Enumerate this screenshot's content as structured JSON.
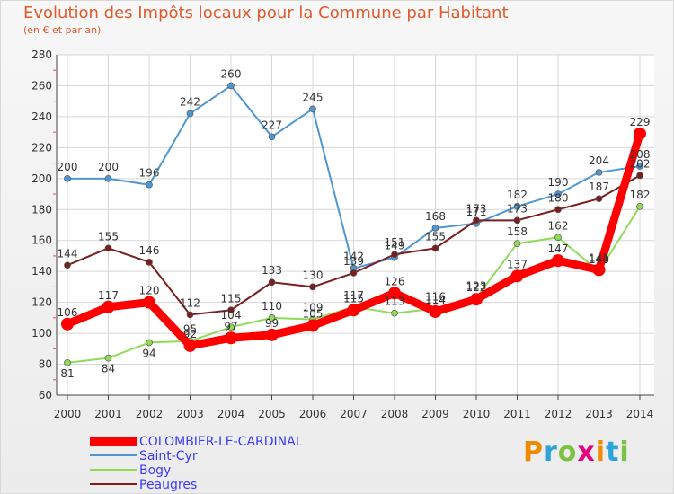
{
  "title": "Evolution des Impôts locaux pour la Commune par Habitant",
  "subtitle": "(en € et par an)",
  "brand": "Proxiti",
  "colors": {
    "title": "#e05a2b",
    "legend_text": "#3a3aff",
    "grid": "#d7d7d7"
  },
  "chart_data": {
    "type": "line",
    "x": [
      "2000",
      "2001",
      "2002",
      "2003",
      "2004",
      "2005",
      "2006",
      "2007",
      "2008",
      "2009",
      "2010",
      "2011",
      "2012",
      "2013",
      "2014"
    ],
    "ylim": [
      60,
      280
    ],
    "yticks": [
      "60",
      "80",
      "100",
      "120",
      "140",
      "160",
      "180",
      "200",
      "220",
      "240",
      "260",
      "280"
    ],
    "grid": true,
    "legend_position": "bottom",
    "series": [
      {
        "name": "COLOMBIER-LE-CARDINAL",
        "color": "#ff0000",
        "values": [
          106,
          117,
          120,
          92,
          97,
          99,
          105,
          115,
          126,
          114,
          122,
          137,
          147,
          141,
          229
        ],
        "labels": [
          "106",
          "117",
          "120",
          "92",
          "97",
          "99",
          "105",
          "115",
          "126",
          "114",
          "122",
          "137",
          "147",
          "141",
          "229"
        ]
      },
      {
        "name": "Saint-Cyr",
        "color": "#4e97d3",
        "values": [
          200,
          200,
          196,
          242,
          260,
          227,
          245,
          142,
          149,
          168,
          171,
          182,
          190,
          204,
          208
        ],
        "labels": [
          "200",
          "200",
          "196",
          "242",
          "260",
          "227",
          "245",
          "142",
          "149",
          "168",
          "171",
          "182",
          "190",
          "204",
          "208"
        ]
      },
      {
        "name": "Bogy",
        "color": "#8fda57",
        "values": [
          81,
          84,
          94,
          95,
          104,
          110,
          109,
          117,
          113,
          116,
          123,
          158,
          162,
          140,
          182
        ],
        "labels": [
          "81",
          "84",
          "94",
          "95",
          "104",
          "110",
          "109",
          "117",
          "113",
          "116",
          "123",
          "158",
          "162",
          "140",
          "182"
        ]
      },
      {
        "name": "Peaugres",
        "color": "#7a1f1f",
        "values": [
          144,
          155,
          146,
          112,
          115,
          133,
          130,
          139,
          151,
          155,
          173,
          173,
          180,
          187,
          202
        ],
        "labels": [
          "144",
          "155",
          "146",
          "112",
          "115",
          "133",
          "130",
          "139",
          "151",
          "155",
          "173",
          "173",
          "180",
          "187",
          "202"
        ]
      }
    ]
  }
}
